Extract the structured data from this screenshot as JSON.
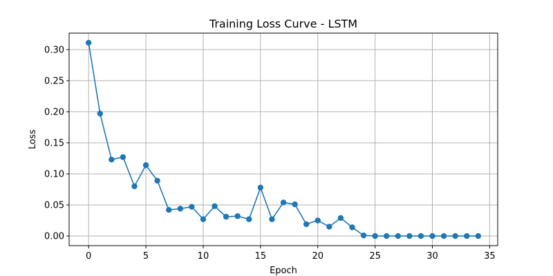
{
  "chart_data": {
    "type": "line",
    "title": "Training Loss Curve - LSTM",
    "xlabel": "Epoch",
    "ylabel": "Loss",
    "xlim": [
      -1.7,
      35.7
    ],
    "ylim": [
      -0.0155,
      0.3265
    ],
    "xticks": [
      0,
      5,
      10,
      15,
      20,
      25,
      30,
      35
    ],
    "yticks": [
      0.0,
      0.05,
      0.1,
      0.15,
      0.2,
      0.25,
      0.3
    ],
    "xtick_labels": [
      "0",
      "5",
      "10",
      "15",
      "20",
      "25",
      "30",
      "35"
    ],
    "ytick_labels": [
      "0.00",
      "0.05",
      "0.10",
      "0.15",
      "0.20",
      "0.25",
      "0.30"
    ],
    "grid": true,
    "legend": "none",
    "x": [
      0,
      1,
      2,
      3,
      4,
      5,
      6,
      7,
      8,
      9,
      10,
      11,
      12,
      13,
      14,
      15,
      16,
      17,
      18,
      19,
      20,
      21,
      22,
      23,
      24,
      25,
      26,
      27,
      28,
      29,
      30,
      31,
      32,
      33,
      34
    ],
    "series": [
      {
        "color": "#1f77b4",
        "marker": "circle",
        "values": [
          0.311,
          0.197,
          0.123,
          0.127,
          0.08,
          0.114,
          0.089,
          0.042,
          0.044,
          0.047,
          0.027,
          0.048,
          0.031,
          0.032,
          0.027,
          0.078,
          0.027,
          0.054,
          0.051,
          0.019,
          0.025,
          0.015,
          0.029,
          0.014,
          0.001,
          0.0,
          0.0,
          0.0,
          0.0,
          0.0,
          0.0,
          0.0,
          0.0,
          0.0,
          0.0
        ]
      }
    ]
  }
}
